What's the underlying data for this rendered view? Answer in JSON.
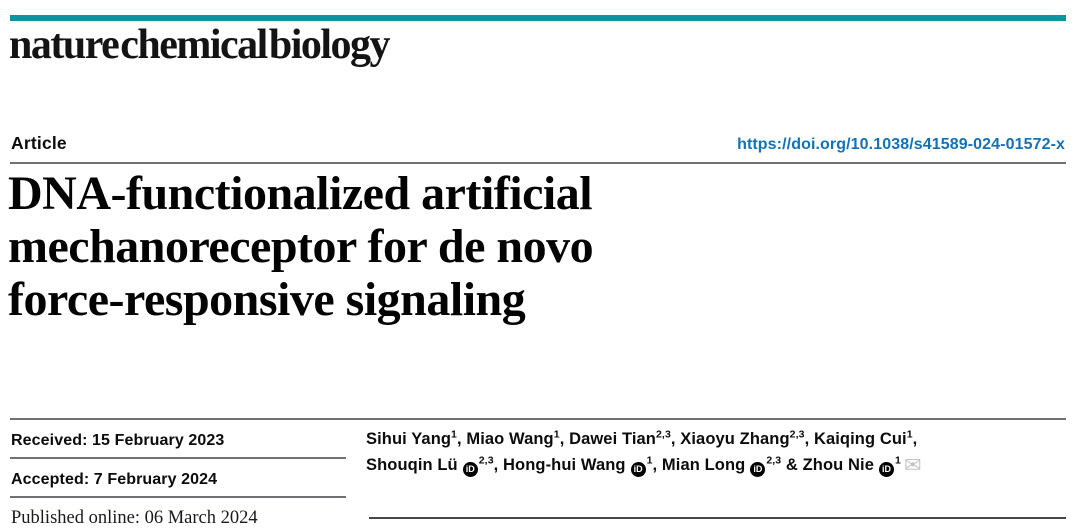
{
  "brand": {
    "masthead": "nature chemical biology",
    "accent_color": "#0a96a0"
  },
  "header": {
    "article_label": "Article",
    "doi": "https://doi.org/10.1038/s41589-024-01572-x",
    "doi_color": "#1173b8"
  },
  "title": {
    "lines": [
      "DNA-functionalized artificial",
      "mechanoreceptor for de novo",
      "force-responsive signaling"
    ]
  },
  "dates": {
    "received": "Received: 15 February 2023",
    "accepted": "Accepted: 7 February 2024",
    "published": "Published online: 06 March 2024"
  },
  "authors": {
    "orcid_icon_label": "iD",
    "envelope_icon": "✉",
    "lines": [
      [
        {
          "name": "Sihui Yang",
          "sup": "1",
          "sep": ", "
        },
        {
          "name": "Miao Wang",
          "sup": "1",
          "sep": ", "
        },
        {
          "name": "Dawei Tian",
          "sup": "2,3",
          "sep": ", "
        },
        {
          "name": "Xiaoyu Zhang",
          "sup": "2,3",
          "sep": ", "
        },
        {
          "name": "Kaiqing Cui",
          "sup": "1",
          "sep": ","
        }
      ],
      [
        {
          "name": "Shouqin Lü",
          "orcid": true,
          "sup": "2,3",
          "sep": ", "
        },
        {
          "name": "Hong-hui Wang",
          "orcid": true,
          "sup": "1",
          "sep": ", "
        },
        {
          "name": "Mian Long",
          "orcid": true,
          "sup": "2,3",
          "sep": " & "
        },
        {
          "name": "Zhou Nie",
          "orcid": true,
          "sup": "1",
          "envelope": true
        }
      ]
    ]
  }
}
